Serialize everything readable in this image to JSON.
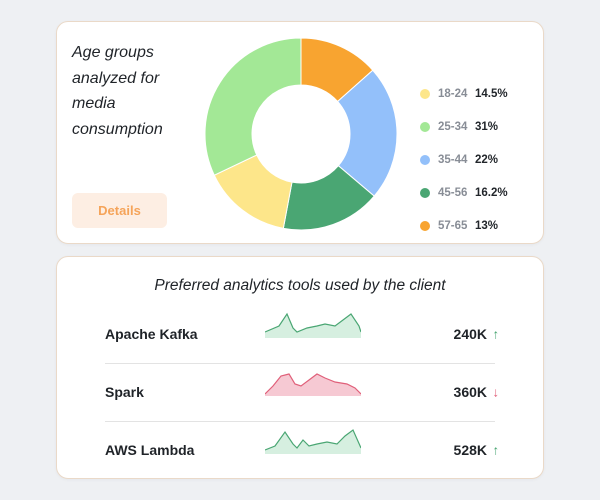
{
  "age_card": {
    "title": "Age groups analyzed for media consumption",
    "details_label": "Details",
    "segments": [
      {
        "label": "18-24",
        "value": 14.5,
        "value_label": "14.5%",
        "color": "#fde68a"
      },
      {
        "label": "25-34",
        "value": 31,
        "value_label": "31%",
        "color": "#a3e896"
      },
      {
        "label": "35-44",
        "value": 22,
        "value_label": "22%",
        "color": "#93c0fa"
      },
      {
        "label": "45-56",
        "value": 16.2,
        "value_label": "16.2%",
        "color": "#4aa673"
      },
      {
        "label": "57-65",
        "value": 13,
        "value_label": "13%",
        "color": "#f8a430"
      }
    ]
  },
  "tools_card": {
    "title": "Preferred analytics tools used by the client",
    "tools": [
      {
        "name": "Apache Kafka",
        "value": "240K",
        "trend": "up",
        "trend_icon": "↑",
        "color": "#4aa673",
        "fill": "#d6efe0"
      },
      {
        "name": "Spark",
        "value": "360K",
        "trend": "down",
        "trend_icon": "↓",
        "color": "#e0607a",
        "fill": "#f6c9d3"
      },
      {
        "name": "AWS Lambda",
        "value": "528K",
        "trend": "up",
        "trend_icon": "↑",
        "color": "#4aa673",
        "fill": "#d6efe0"
      }
    ]
  }
}
